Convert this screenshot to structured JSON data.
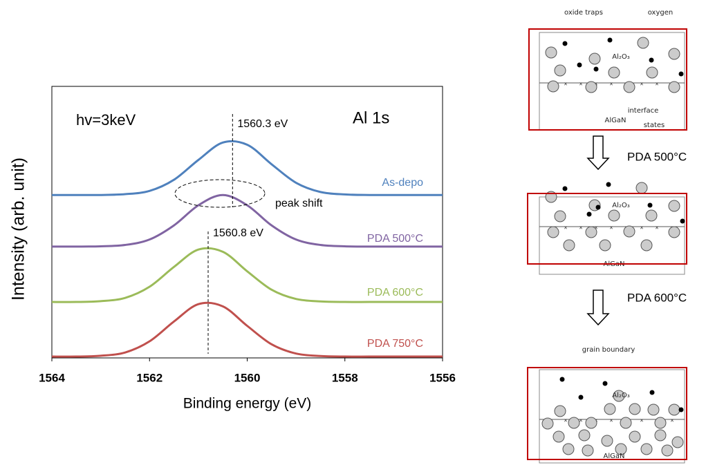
{
  "chart_data": {
    "type": "line",
    "x": [
      1564,
      1563.5,
      1563,
      1562.5,
      1562,
      1561.5,
      1561,
      1560.5,
      1560,
      1559.5,
      1559,
      1558.5,
      1558,
      1557.5,
      1557,
      1556.5,
      1556
    ],
    "series": [
      {
        "name": "As-depo",
        "color": "#4f81bd",
        "values": [
          6.0,
          6.0,
          6.0,
          6.03,
          6.15,
          6.56,
          7.29,
          7.93,
          7.85,
          7.13,
          6.45,
          6.11,
          6.02,
          6.0,
          6.0,
          6.0,
          6.0
        ]
      },
      {
        "name": "PDA 500°C",
        "color": "#8064a2",
        "values": [
          4.1,
          4.1,
          4.11,
          4.16,
          4.36,
          4.88,
          5.62,
          6.0,
          5.62,
          4.88,
          4.36,
          4.16,
          4.11,
          4.1,
          4.1,
          4.1,
          4.1
        ]
      },
      {
        "name": "PDA 600°C",
        "color": "#9bbb59",
        "values": [
          2.06,
          2.06,
          2.09,
          2.21,
          2.62,
          3.35,
          3.99,
          3.91,
          3.19,
          2.51,
          2.17,
          2.08,
          2.06,
          2.06,
          2.06,
          2.06,
          2.06
        ]
      },
      {
        "name": "PDA 750°C",
        "color": "#c0504d",
        "values": [
          0.05,
          0.05,
          0.08,
          0.2,
          0.61,
          1.34,
          1.98,
          1.9,
          1.18,
          0.5,
          0.16,
          0.07,
          0.05,
          0.05,
          0.05,
          0.05,
          0.05
        ]
      }
    ],
    "xlim": [
      1564,
      1556
    ],
    "xticks": [
      1564,
      1562,
      1560,
      1558,
      1556
    ],
    "ylim": [
      0,
      10
    ],
    "x_label": "Binding energy (eV)",
    "y_label": "Intensity (arb. unit)",
    "markers": [
      {
        "x": 1560.3,
        "label": "1560.3 eV"
      },
      {
        "x": 1560.8,
        "label": "1560.8 eV"
      }
    ],
    "annotations": [
      "hv=3keV",
      "Al 1s",
      "peak shift"
    ]
  },
  "diagram": {
    "panels": [
      {
        "labels": [
          "oxide traps",
          "oxygen",
          "Al₂O₃",
          "interface",
          "states",
          "AlGaN"
        ]
      },
      {
        "labels": [
          "Al₂O₃",
          "AlGaN"
        ]
      },
      {
        "labels": [
          "grain boundary",
          "Al₂O₃",
          "AlGaN"
        ]
      }
    ],
    "steps": [
      "PDA 500°C",
      "PDA 600°C"
    ]
  }
}
